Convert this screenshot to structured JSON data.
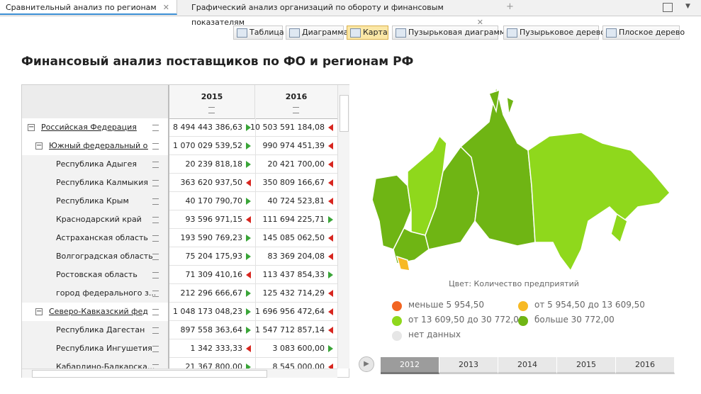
{
  "tabs": [
    "Сравнительный анализ по регионам",
    "Графический анализ организаций по обороту и финансовым показателям"
  ],
  "toolbar": [
    "Таблица",
    "Диаграмма",
    "Карта",
    "Пузырьковая диаграмма",
    "Пузырьковое дерево",
    "Плоское дерево"
  ],
  "title": "Финансовый анализ поставщиков по ФО и регионам РФ",
  "table": {
    "columns": [
      "2015",
      "2016"
    ],
    "rows": [
      {
        "label": "Российская Федерация",
        "level": 0,
        "values": [
          "8 494 443 386,63",
          "10 503 591 184,08"
        ],
        "trend": [
          "up",
          "down"
        ]
      },
      {
        "label": "Южный федеральный о...",
        "level": 1,
        "values": [
          "1 070 029 539,52",
          "990 974 451,39"
        ],
        "trend": [
          "up",
          "down"
        ]
      },
      {
        "label": "Республика Адыгея",
        "level": 2,
        "values": [
          "20 239 818,18",
          "20 421 700,00"
        ],
        "trend": [
          "up",
          "down"
        ]
      },
      {
        "label": "Республика Калмыкия",
        "level": 2,
        "values": [
          "363 620 937,50",
          "350 809 166,67"
        ],
        "trend": [
          "down",
          "down"
        ]
      },
      {
        "label": "Республика Крым",
        "level": 2,
        "values": [
          "40 170 790,70",
          "40 724 523,81"
        ],
        "trend": [
          "up",
          "down"
        ]
      },
      {
        "label": "Краснодарский край",
        "level": 2,
        "values": [
          "93 596 971,15",
          "111 694 225,71"
        ],
        "trend": [
          "down",
          "up"
        ]
      },
      {
        "label": "Астраханская область",
        "level": 2,
        "values": [
          "193 590 769,23",
          "145 085 062,50"
        ],
        "trend": [
          "up",
          "down"
        ]
      },
      {
        "label": "Волгоградская область",
        "level": 2,
        "values": [
          "75 204 175,93",
          "83 369 204,08"
        ],
        "trend": [
          "up",
          "down"
        ]
      },
      {
        "label": "Ростовская область",
        "level": 2,
        "values": [
          "71 309 410,16",
          "113 437 854,33"
        ],
        "trend": [
          "down",
          "up"
        ]
      },
      {
        "label": "город федерального з...",
        "level": 2,
        "values": [
          "212 296 666,67",
          "125 432 714,29"
        ],
        "trend": [
          "up",
          "down"
        ]
      },
      {
        "label": "Северо-Кавказский фед...",
        "level": 1,
        "values": [
          "1 048 173 048,23",
          "1 696 956 472,64"
        ],
        "trend": [
          "up",
          "down"
        ]
      },
      {
        "label": "Республика Дагестан",
        "level": 2,
        "values": [
          "897 558 363,64",
          "1 547 712 857,14"
        ],
        "trend": [
          "up",
          "down"
        ]
      },
      {
        "label": "Республика Ингушетия",
        "level": 2,
        "values": [
          "1 342 333,33",
          "3 083 600,00"
        ],
        "trend": [
          "down",
          "up"
        ]
      },
      {
        "label": "Кабардино-Балкарска...",
        "level": 2,
        "values": [
          "21 367 800,00",
          "8 545 000,00"
        ],
        "trend": [
          "up",
          "down"
        ]
      }
    ]
  },
  "legend": {
    "title": "Цвет: Количество предприятий",
    "items": [
      {
        "label": "меньше 5 954,50",
        "color": "#f26522"
      },
      {
        "label": "от 5 954,50 до 13 609,50",
        "color": "#f7b924"
      },
      {
        "label": "от 13 609,50 до 30 772,00",
        "color": "#8fd81c"
      },
      {
        "label": "больше 30 772,00",
        "color": "#6fb514"
      },
      {
        "label": "нет данных",
        "color": "#e6e6e6"
      }
    ]
  },
  "timeline": {
    "years": [
      "2012",
      "2013",
      "2014",
      "2015",
      "2016"
    ],
    "active": 0
  }
}
